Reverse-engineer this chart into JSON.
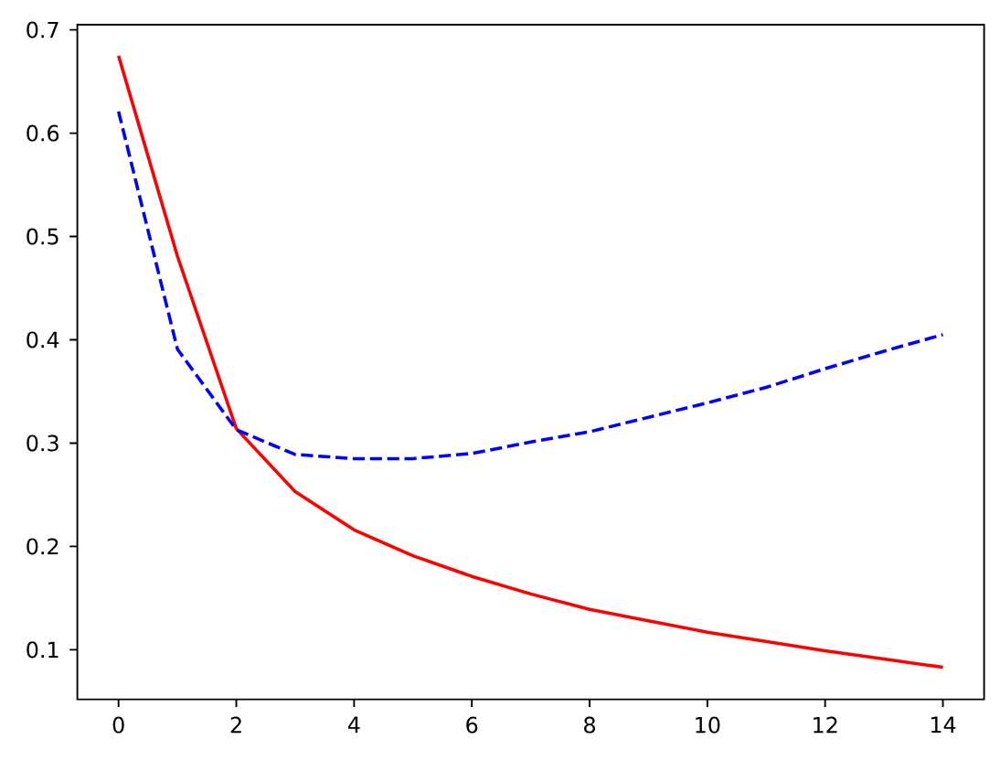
{
  "chart_data": {
    "type": "line",
    "x": [
      0,
      1,
      2,
      3,
      4,
      5,
      6,
      7,
      8,
      9,
      10,
      11,
      12,
      13,
      14
    ],
    "series": [
      {
        "color": "#ff0000",
        "line_style": "solid",
        "values": [
          0.675,
          0.481,
          0.314,
          0.253,
          0.216,
          0.191,
          0.171,
          0.154,
          0.139,
          0.128,
          0.117,
          0.108,
          0.099,
          0.091,
          0.083
        ]
      },
      {
        "color": "#0000ff",
        "line_style": "dashed",
        "values": [
          0.621,
          0.391,
          0.313,
          0.289,
          0.285,
          0.285,
          0.29,
          0.301,
          0.311,
          0.325,
          0.339,
          0.354,
          0.372,
          0.389,
          0.405
        ]
      }
    ],
    "xlim": [
      -0.7,
      14.7
    ],
    "ylim": [
      0.052,
      0.705
    ],
    "xticks": [
      0,
      2,
      4,
      6,
      8,
      10,
      12,
      14
    ],
    "yticks": [
      0.1,
      0.2,
      0.3,
      0.4,
      0.5,
      0.6,
      0.7
    ]
  }
}
